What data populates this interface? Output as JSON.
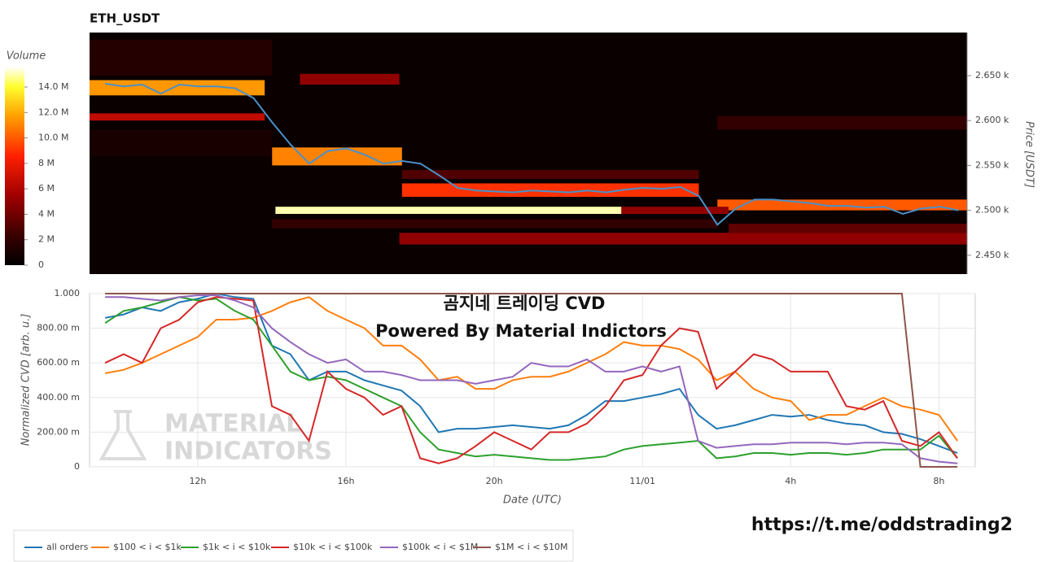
{
  "chart_data": [
    {
      "type": "heatmap",
      "title": "ETH_USDT",
      "y_label": "Price [USDT]",
      "xlim": [
        9.08,
        32.73
      ],
      "ylim": [
        2429,
        2698
      ],
      "yticks": [
        {
          "value": 2450,
          "label": "2.450 k"
        },
        {
          "value": 2500,
          "label": "2.500 k"
        },
        {
          "value": 2550,
          "label": "2.550 k"
        },
        {
          "value": 2600,
          "label": "2.600 k"
        },
        {
          "value": 2650,
          "label": "2.650 k"
        }
      ],
      "colorbar": {
        "label": "Volume",
        "lim": [
          0,
          15600000
        ],
        "ticks": [
          {
            "value": 0,
            "label": "0"
          },
          {
            "value": 2000000,
            "label": "2 M"
          },
          {
            "value": 4000000,
            "label": "4 M"
          },
          {
            "value": 6000000,
            "label": "6 M"
          },
          {
            "value": 8000000,
            "label": "8 M"
          },
          {
            "value": 10000000,
            "label": "10.0 M"
          },
          {
            "value": 12000000,
            "label": "12.0 M"
          },
          {
            "value": 14000000,
            "label": "14.0 M"
          }
        ]
      },
      "cells": [
        {
          "x0": 9.08,
          "x1": 32.73,
          "y0": 2429,
          "y1": 2698,
          "value": 400000
        },
        {
          "x0": 9.08,
          "x1": 14,
          "y0": 2650,
          "y1": 2690,
          "value": 1500000
        },
        {
          "x0": 9.08,
          "x1": 14,
          "y0": 2560,
          "y1": 2590,
          "value": 1000000
        },
        {
          "x0": 14,
          "x1": 26,
          "y0": 2480,
          "y1": 2490,
          "value": 2000000
        },
        {
          "x0": 26,
          "x1": 32.73,
          "y0": 2590,
          "y1": 2605,
          "value": 2000000
        },
        {
          "x0": 17.5,
          "x1": 25.5,
          "y0": 2535,
          "y1": 2545,
          "value": 3000000
        },
        {
          "x0": 9.08,
          "x1": 13.8,
          "y0": 2600,
          "y1": 2608,
          "value": 6500000
        },
        {
          "x0": 9.08,
          "x1": 13.8,
          "y0": 2628,
          "y1": 2645,
          "value": 11500000
        },
        {
          "x0": 14.75,
          "x1": 17.43,
          "y0": 2640,
          "y1": 2652,
          "value": 5000000
        },
        {
          "x0": 14,
          "x1": 17.5,
          "y0": 2550,
          "y1": 2570,
          "value": 11000000
        },
        {
          "x0": 17.5,
          "x1": 25.5,
          "y0": 2515,
          "y1": 2530,
          "value": 9000000
        },
        {
          "x0": 26,
          "x1": 32.73,
          "y0": 2500,
          "y1": 2512,
          "value": 10000000
        },
        {
          "x0": 23.4,
          "x1": 26.3,
          "y0": 2496,
          "y1": 2504,
          "value": 5000000
        },
        {
          "x0": 14.09,
          "x1": 23.41,
          "y0": 2496,
          "y1": 2504,
          "value": 15000000
        },
        {
          "x0": 17.43,
          "x1": 32.73,
          "y0": 2462,
          "y1": 2475,
          "value": 5000000
        },
        {
          "x0": 26.3,
          "x1": 32.73,
          "y0": 2475,
          "y1": 2485,
          "value": 3500000
        }
      ],
      "price": {
        "color": "#4a90c8",
        "x": [
          9.5,
          10,
          10.5,
          11,
          11.5,
          12,
          12.5,
          13,
          13.5,
          14,
          14.5,
          15,
          15.5,
          16,
          16.5,
          17,
          17.5,
          18,
          18.5,
          19,
          19.5,
          20,
          20.5,
          21,
          21.5,
          22,
          22.5,
          23,
          23.5,
          24,
          24.5,
          25,
          25.5,
          26,
          26.5,
          27,
          27.5,
          28,
          28.5,
          29,
          29.5,
          30,
          30.5,
          31,
          31.5,
          32,
          32.5
        ],
        "values": [
          2641,
          2638,
          2640,
          2630,
          2640,
          2638,
          2638,
          2636,
          2625,
          2598,
          2573,
          2552,
          2566,
          2569,
          2562,
          2552,
          2555,
          2552,
          2539,
          2525,
          2522,
          2521,
          2520,
          2522,
          2521,
          2520,
          2522,
          2520,
          2523,
          2525,
          2524,
          2526,
          2516,
          2484,
          2502,
          2512,
          2512,
          2510,
          2508,
          2505,
          2505,
          2503,
          2504,
          2496,
          2502,
          2504,
          2500
        ]
      }
    },
    {
      "type": "line",
      "x_label": "Date (UTC)",
      "y_label": "Normalized CVD [arb. u.]",
      "grid": true,
      "annotations": [
        "곰지네 트레이딩 CVD",
        "Powered By Material Indictors",
        "MATERIAL",
        "INDICATORS",
        "https://t.me/oddstrading2"
      ],
      "xlim": [
        9.08,
        32.98
      ],
      "ylim": [
        0,
        1
      ],
      "xticks": [
        {
          "value": 12,
          "label": "12h"
        },
        {
          "value": 16,
          "label": "16h"
        },
        {
          "value": 20,
          "label": "20h"
        },
        {
          "value": 24,
          "label": "11/01"
        },
        {
          "value": 28,
          "label": "4h"
        },
        {
          "value": 32,
          "label": "8h"
        }
      ],
      "yticks": [
        0,
        {
          "value": 0.2,
          "label": "200.00 m"
        },
        {
          "value": 0.4,
          "label": "400.00 m"
        },
        {
          "value": 0.6,
          "label": "600.00 m"
        },
        {
          "value": 0.8,
          "label": "800.00 m"
        },
        {
          "value": 1,
          "label": "1.000"
        }
      ],
      "x": [
        9.5,
        10,
        10.5,
        11,
        11.5,
        12,
        12.5,
        13,
        13.5,
        14,
        14.5,
        15,
        15.5,
        16,
        16.5,
        17,
        17.5,
        18,
        18.5,
        19,
        19.5,
        20,
        20.5,
        21,
        21.5,
        22,
        22.5,
        23,
        23.5,
        24,
        24.5,
        25,
        25.5,
        26,
        26.5,
        27,
        27.5,
        28,
        28.5,
        29,
        29.5,
        30,
        30.5,
        31,
        31.5,
        32,
        32.5
      ],
      "series": [
        {
          "name": "all orders",
          "color": "#1f77b4",
          "values": [
            0.86,
            0.88,
            0.92,
            0.9,
            0.95,
            0.97,
            1.0,
            0.98,
            0.97,
            0.7,
            0.65,
            0.5,
            0.55,
            0.55,
            0.5,
            0.47,
            0.44,
            0.35,
            0.2,
            0.22,
            0.22,
            0.23,
            0.24,
            0.23,
            0.22,
            0.24,
            0.3,
            0.38,
            0.38,
            0.4,
            0.42,
            0.45,
            0.3,
            0.22,
            0.24,
            0.27,
            0.3,
            0.29,
            0.3,
            0.27,
            0.25,
            0.24,
            0.2,
            0.19,
            0.16,
            0.12,
            0.08
          ]
        },
        {
          "name": "$100 < i < $1k",
          "color": "#ff7f0e",
          "values": [
            0.54,
            0.56,
            0.6,
            0.65,
            0.7,
            0.75,
            0.85,
            0.85,
            0.86,
            0.9,
            0.95,
            0.98,
            0.9,
            0.85,
            0.8,
            0.7,
            0.7,
            0.62,
            0.5,
            0.52,
            0.45,
            0.45,
            0.5,
            0.52,
            0.52,
            0.55,
            0.6,
            0.65,
            0.72,
            0.7,
            0.7,
            0.68,
            0.62,
            0.5,
            0.55,
            0.45,
            0.4,
            0.38,
            0.27,
            0.3,
            0.3,
            0.35,
            0.4,
            0.35,
            0.33,
            0.3,
            0.15
          ]
        },
        {
          "name": "$1k < i < $10k",
          "color": "#2ca02c",
          "values": [
            0.83,
            0.9,
            0.92,
            0.95,
            0.98,
            0.96,
            0.97,
            0.9,
            0.85,
            0.7,
            0.55,
            0.5,
            0.52,
            0.5,
            0.45,
            0.4,
            0.35,
            0.2,
            0.1,
            0.08,
            0.06,
            0.07,
            0.06,
            0.05,
            0.04,
            0.04,
            0.05,
            0.06,
            0.1,
            0.12,
            0.13,
            0.14,
            0.15,
            0.05,
            0.06,
            0.08,
            0.08,
            0.07,
            0.08,
            0.08,
            0.07,
            0.08,
            0.1,
            0.1,
            0.1,
            0.18,
            0.05
          ]
        },
        {
          "name": "$10k < i < $100k",
          "color": "#d62728",
          "values": [
            0.6,
            0.65,
            0.6,
            0.8,
            0.85,
            0.95,
            0.98,
            0.97,
            0.96,
            0.35,
            0.3,
            0.15,
            0.55,
            0.45,
            0.4,
            0.3,
            0.35,
            0.05,
            0.02,
            0.05,
            0.12,
            0.2,
            0.15,
            0.1,
            0.2,
            0.2,
            0.25,
            0.35,
            0.5,
            0.53,
            0.7,
            0.8,
            0.78,
            0.45,
            0.55,
            0.65,
            0.62,
            0.55,
            0.55,
            0.55,
            0.35,
            0.33,
            0.38,
            0.15,
            0.12,
            0.2,
            0.05
          ]
        },
        {
          "name": "$100k < i < $1M",
          "color": "#9467bd",
          "values": [
            0.98,
            0.98,
            0.97,
            0.96,
            0.98,
            0.99,
            0.99,
            0.96,
            0.92,
            0.8,
            0.72,
            0.65,
            0.6,
            0.62,
            0.55,
            0.55,
            0.53,
            0.5,
            0.5,
            0.5,
            0.48,
            0.5,
            0.52,
            0.6,
            0.58,
            0.58,
            0.62,
            0.55,
            0.55,
            0.58,
            0.55,
            0.58,
            0.15,
            0.11,
            0.12,
            0.13,
            0.13,
            0.14,
            0.14,
            0.14,
            0.13,
            0.14,
            0.14,
            0.13,
            0.05,
            0.03,
            0.02
          ]
        },
        {
          "name": "$1M < i < $10M",
          "color": "#8c564b",
          "values": [
            1,
            1,
            1,
            1,
            1,
            1,
            1,
            1,
            1,
            1,
            1,
            1,
            1,
            1,
            1,
            1,
            1,
            1,
            1,
            1,
            1,
            1,
            1,
            1,
            1,
            1,
            1,
            1,
            1,
            1,
            1,
            1,
            1,
            1,
            1,
            1,
            1,
            1,
            1,
            1,
            1,
            1,
            1,
            1,
            0,
            0,
            0
          ]
        }
      ]
    }
  ]
}
